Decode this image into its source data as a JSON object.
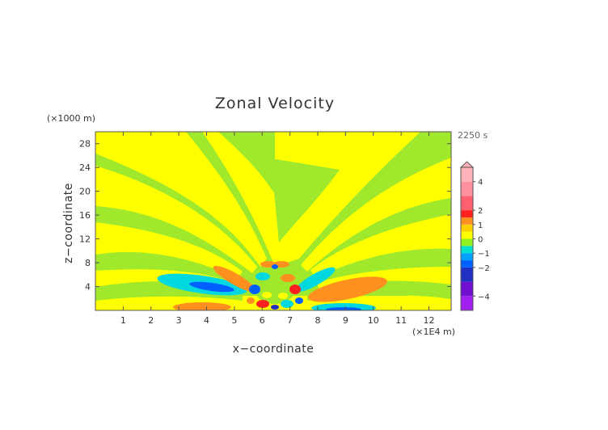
{
  "chart_data": {
    "type": "heatmap",
    "title": "Zonal Velocity",
    "xlabel": "x−coordinate",
    "ylabel": "z−coordinate",
    "x_unit": "(×1E4 m)",
    "y_unit": "(×1000 m)",
    "time_label": "2250 s",
    "xlim": [
      0,
      12.8
    ],
    "ylim": [
      0,
      30
    ],
    "x_ticks": [
      1,
      2,
      3,
      4,
      5,
      6,
      7,
      8,
      9,
      10,
      11,
      12
    ],
    "y_ticks": [
      4,
      8,
      12,
      16,
      20,
      24,
      28
    ],
    "colorbar": {
      "ticks": [
        "4",
        "2",
        "1",
        "0",
        "−1",
        "−2",
        "−4"
      ],
      "tick_values": [
        4,
        2,
        1,
        0,
        -1,
        -2,
        -4
      ],
      "colors": [
        "#a020f0",
        "#7010d0",
        "#2030c0",
        "#0060ff",
        "#00a0ff",
        "#00e0d0",
        "#90f020",
        "#ffff00",
        "#ffd000",
        "#ff9020",
        "#ff2020",
        "#ff6070",
        "#ff90a0",
        "#ffb0b8"
      ],
      "levels": [
        -5,
        -4,
        -3,
        -2,
        -1.5,
        -1,
        -0.5,
        0,
        0.5,
        1,
        1.5,
        2,
        3,
        4,
        5
      ]
    },
    "grid": false
  }
}
